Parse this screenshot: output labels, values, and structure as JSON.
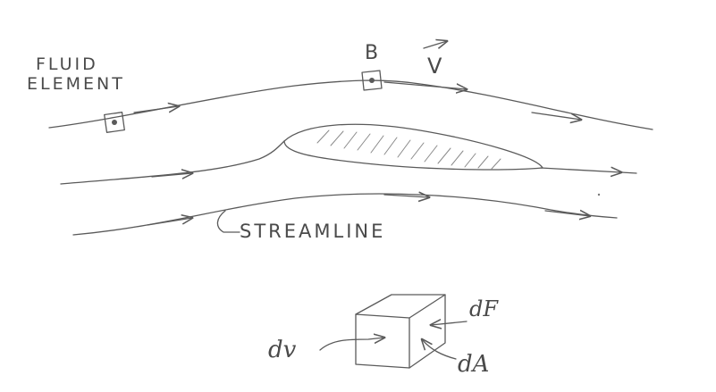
{
  "labels": {
    "fluid_element_line1": "FLUID",
    "fluid_element_line2": "ELEMENT",
    "point_b": "B",
    "velocity": "V",
    "streamline": "STREAMLINE",
    "volume": "dv",
    "force": "dF",
    "area": "dA"
  },
  "colors": {
    "pencil": "#5a5a5a",
    "paper": "#ffffff"
  },
  "icons": {
    "velocity_vector": "arrow-over-letter",
    "airfoil": "hatched-airfoil",
    "volume_cube": "cube"
  }
}
